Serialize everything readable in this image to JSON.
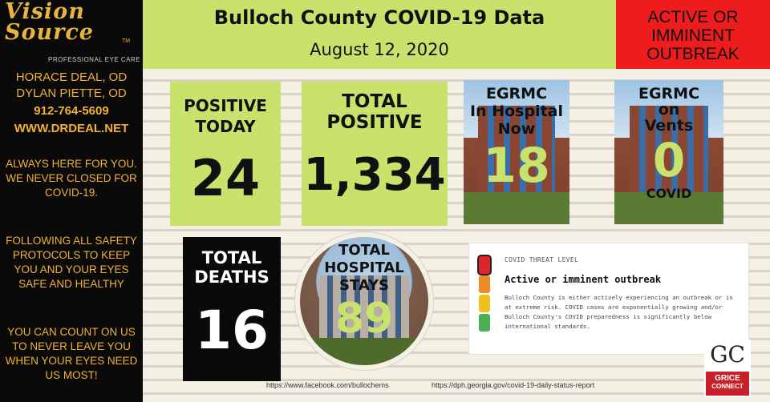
{
  "sidebar": {
    "logo_script": "Vision Source",
    "logo_tm": "TM",
    "logo_sub": "PROFESSIONAL EYE CARE",
    "doctor1": "HORACE DEAL, OD",
    "doctor2": "DYLAN PIETTE, OD",
    "phone": "912-764-5609",
    "website": "WWW.DRDEAL.NET",
    "block1": "ALWAYS HERE FOR YOU.  WE NEVER CLOSED FOR COVID-19.",
    "block2": "FOLLOWING ALL SAFETY PROTOCOLS TO KEEP YOU AND YOUR EYES SAFE AND HEALTHY",
    "block3": "YOU CAN COUNT ON US TO NEVER LEAVE YOU WHEN YOUR EYES NEED US MOST!"
  },
  "header": {
    "title": "Bulloch County COVID-19 Data",
    "date": "August 12, 2020",
    "alert": "ACTIVE OR IMMINENT OUTBREAK"
  },
  "stats": {
    "positive_today": {
      "label1": "POSITIVE",
      "label2": "TODAY",
      "value": "24"
    },
    "total_positive": {
      "label1": "TOTAL",
      "label2": "POSITIVE",
      "value": "1,334"
    },
    "in_hospital": {
      "label1": "EGRMC",
      "label2": "In Hospital",
      "label3": "Now",
      "value": "18"
    },
    "on_vents": {
      "label1": "EGRMC",
      "label2": "on",
      "label3": "Vents",
      "value": "0",
      "sub": "COVID"
    },
    "total_deaths": {
      "label1": "TOTAL",
      "label2": "DEATHS",
      "value": "16"
    },
    "hospital_stays": {
      "label1": "TOTAL",
      "label2": "HOSPITAL",
      "label3": "STAYS",
      "value": "89"
    }
  },
  "threat": {
    "title": "COVID THREAT LEVEL",
    "level": "Active or imminent outbreak",
    "description": "Bulloch County is either actively experiencing an outbreak or is at extreme risk. COVID cases are exponentially growing and/or Bulloch County's COVID preparedness is significantly below international standards.",
    "active_level_index": 0,
    "colors": {
      "red": "#e0242b",
      "orange": "#f08a24",
      "yellow": "#f0c020",
      "green": "#4caf50",
      "inactive": "#e0e0e0"
    }
  },
  "logo": {
    "letters": "GC",
    "line1": "GRICE",
    "line2": "CONNECT"
  },
  "footer": {
    "facebook": "https://www.facebook.com/bullochems",
    "source": "https://dph.georgia.gov/covid-19-daily-status-report"
  },
  "colors": {
    "accent_green": "#c9e26c",
    "alert_red": "#ee1c1c",
    "sidebar_gold": "#f2b134"
  }
}
